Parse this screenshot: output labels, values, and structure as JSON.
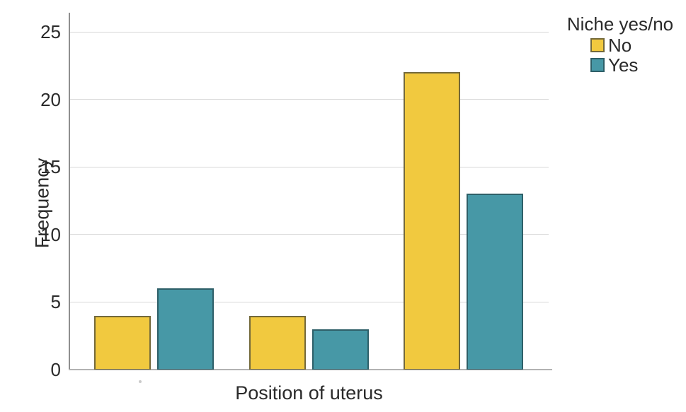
{
  "chart_data": {
    "type": "bar",
    "title": "",
    "xlabel": "Position of uterus",
    "ylabel": "Frequency",
    "categories": [
      "",
      "",
      ""
    ],
    "categories_labels_visible": false,
    "series": [
      {
        "name": "No",
        "values": [
          4,
          4,
          22
        ],
        "color": "#F1C93F",
        "border_color": "#73693B"
      },
      {
        "name": "Yes",
        "values": [
          6,
          3,
          13
        ],
        "color": "#4798A6",
        "border_color": "#2E5F68"
      }
    ],
    "ylim": [
      0,
      26.4
    ],
    "yticks": [
      0,
      5,
      10,
      15,
      20,
      25
    ],
    "grid": true,
    "legend": {
      "title": "Niche yes/no",
      "position": "top-right",
      "entries": [
        "No",
        "Yes"
      ]
    },
    "colors": {
      "background": "#ffffff",
      "gridline": "#d8d8d8",
      "y_axis_line": "#8f8f8f",
      "x_axis_line": "#b3b3b3",
      "text": "#2a2a2a"
    }
  }
}
